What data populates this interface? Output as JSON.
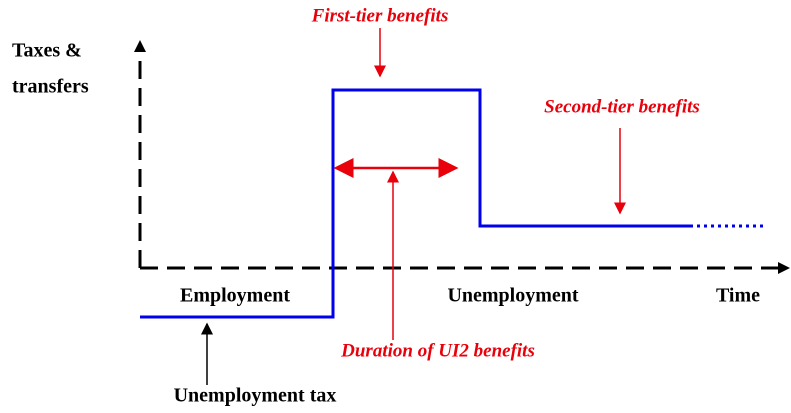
{
  "y_axis_label": [
    "Taxes &",
    "transfers"
  ],
  "x_axis_label": "Time",
  "regions": [
    "Employment",
    "Unemployment"
  ],
  "annotations": {
    "first_tier": "First-tier benefits",
    "second_tier": "Second-tier benefits",
    "duration": "Duration of UI2 benefits",
    "tax": "Unemployment tax"
  }
}
